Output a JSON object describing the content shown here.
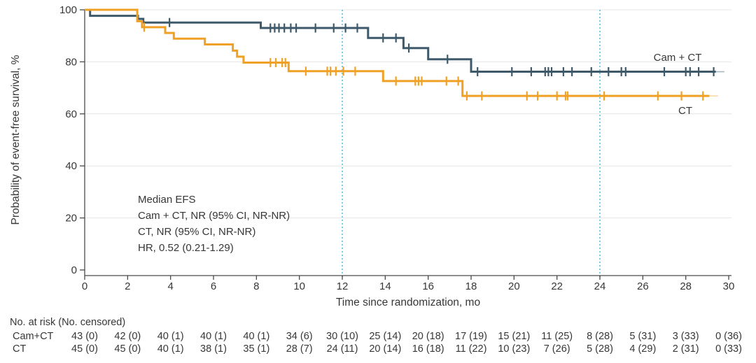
{
  "annotation": {
    "lines": [
      "Median EFS",
      "Cam + CT, NR (95% CI, NR-NR)",
      "CT, NR (95% CI, NR-NR)",
      "HR, 0.52 (0.21-1.29)"
    ]
  },
  "risk_table": {
    "header": "No. at risk (No. censored)",
    "times": [
      0,
      2,
      4,
      6,
      8,
      10,
      12,
      14,
      16,
      18,
      20,
      22,
      24,
      26,
      28,
      30
    ],
    "rows": [
      {
        "label": "Cam+CT",
        "values": [
          "43 (0)",
          "42 (0)",
          "40 (1)",
          "40 (1)",
          "40 (1)",
          "34 (6)",
          "30 (10)",
          "25 (14)",
          "20 (18)",
          "17 (19)",
          "15 (21)",
          "11 (25)",
          "8 (28)",
          "5 (31)",
          "3 (33)",
          "0 (36)"
        ]
      },
      {
        "label": "CT",
        "values": [
          "45 (0)",
          "45 (0)",
          "40 (1)",
          "38 (1)",
          "35 (1)",
          "28 (7)",
          "24 (11)",
          "20 (14)",
          "16 (18)",
          "11 (22)",
          "10 (23)",
          "7 (26)",
          "5 (28)",
          "4 (29)",
          "2 (31)",
          "0 (33)"
        ]
      }
    ]
  },
  "colors": {
    "cam_ct": "#3E5A6A",
    "ct": "#F0A125",
    "cam_ct_fade": "#A8B8C1",
    "ct_fade": "#F7D9A5",
    "reference": "#53C3E6",
    "grid": "#E4E4E4",
    "axis": "#4A4A4A",
    "text": "#373737"
  },
  "chart_data": {
    "type": "line",
    "subtype": "kaplan-meier-step",
    "title": "",
    "xlabel": "Time since randomization, mo",
    "ylabel": "Probability of event-free survival, %",
    "xlim": [
      0,
      30
    ],
    "ylim": [
      0,
      100
    ],
    "x_ticks": [
      0,
      2,
      4,
      6,
      8,
      10,
      12,
      14,
      16,
      18,
      20,
      22,
      24,
      26,
      28,
      30
    ],
    "y_ticks": [
      0,
      20,
      40,
      60,
      80,
      100
    ],
    "grid": "horizontal-only",
    "legend_position": "labels-on-plot-right",
    "reference_lines_x": [
      12,
      24
    ],
    "series": [
      {
        "id": "cam-ct",
        "name": "Cam + CT",
        "color": "#3E5A6A",
        "fade_color": "#A8B8C1",
        "steps": [
          [
            0,
            100
          ],
          [
            0.25,
            97.7
          ],
          [
            2.48,
            96.5
          ],
          [
            2.73,
            95.1
          ],
          [
            8.2,
            93.0
          ],
          [
            13.2,
            89.2
          ],
          [
            14.85,
            85.3
          ],
          [
            16.0,
            81.0
          ],
          [
            18.0,
            76.2
          ]
        ],
        "end": 29.4,
        "fade_end": 29.8,
        "censor_times": [
          3.95,
          8.65,
          8.85,
          9.05,
          9.3,
          9.6,
          9.85,
          10.75,
          11.6,
          12.15,
          12.7,
          13.9,
          14.5,
          15.1,
          16.9,
          18.3,
          19.9,
          20.8,
          21.45,
          21.6,
          21.75,
          22.3,
          22.7,
          23.6,
          24.4,
          25.0,
          25.2,
          27.0,
          28.0,
          28.2,
          28.6,
          29.3
        ]
      },
      {
        "id": "ct",
        "name": "CT",
        "color": "#F0A125",
        "fade_color": "#F7D9A5",
        "steps": [
          [
            0,
            100
          ],
          [
            2.45,
            95.6
          ],
          [
            2.67,
            93.3
          ],
          [
            3.75,
            91.1
          ],
          [
            4.15,
            88.9
          ],
          [
            5.6,
            86.7
          ],
          [
            6.9,
            84.3
          ],
          [
            7.1,
            82.0
          ],
          [
            7.4,
            79.7
          ],
          [
            9.5,
            76.4
          ],
          [
            13.9,
            72.6
          ],
          [
            17.6,
            66.9
          ]
        ],
        "end": 29.1,
        "fade_end": 29.5,
        "censor_times": [
          2.77,
          8.65,
          8.9,
          9.2,
          9.35,
          10.3,
          11.3,
          11.45,
          11.7,
          12.05,
          12.6,
          14.5,
          15.4,
          15.55,
          15.7,
          16.85,
          17.4,
          17.8,
          18.5,
          20.6,
          21.1,
          22.0,
          22.4,
          22.5,
          24.2,
          26.7,
          27.8,
          28.8
        ]
      }
    ]
  }
}
